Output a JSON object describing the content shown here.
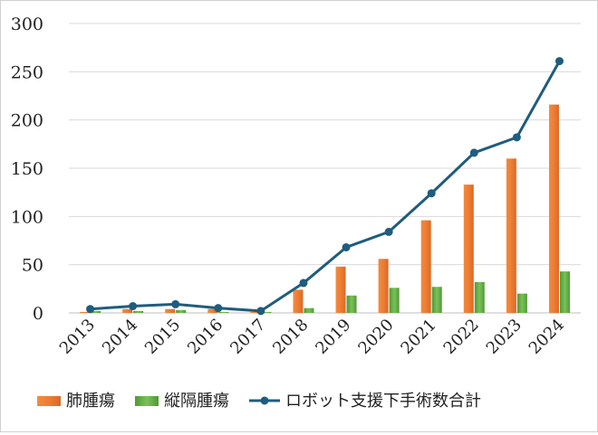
{
  "chart_data": {
    "type": "bar",
    "title": "",
    "xlabel": "",
    "ylabel": "",
    "ylim": [
      0,
      300
    ],
    "yticks": [
      0,
      50,
      100,
      150,
      200,
      250,
      300
    ],
    "grid": true,
    "legend_position": "bottom",
    "categories": [
      "2013",
      "2014",
      "2015",
      "2016",
      "2017",
      "2018",
      "2019",
      "2020",
      "2021",
      "2022",
      "2023",
      "2024"
    ],
    "series": [
      {
        "name": "肺腫瘍",
        "type": "bar",
        "color": "#ed7d31",
        "values": [
          1,
          4,
          4,
          4,
          1,
          24,
          48,
          56,
          96,
          133,
          160,
          216
        ]
      },
      {
        "name": "縦隔腫瘍",
        "type": "bar",
        "color": "#70ad47",
        "values": [
          2,
          2,
          3,
          1,
          1,
          5,
          18,
          26,
          27,
          32,
          20,
          43
        ]
      },
      {
        "name": "ロボット支援下手術数合計",
        "type": "line",
        "color": "#1f5c7e",
        "values": [
          4,
          7,
          9,
          5,
          2,
          31,
          68,
          84,
          124,
          166,
          182,
          261
        ]
      }
    ]
  }
}
